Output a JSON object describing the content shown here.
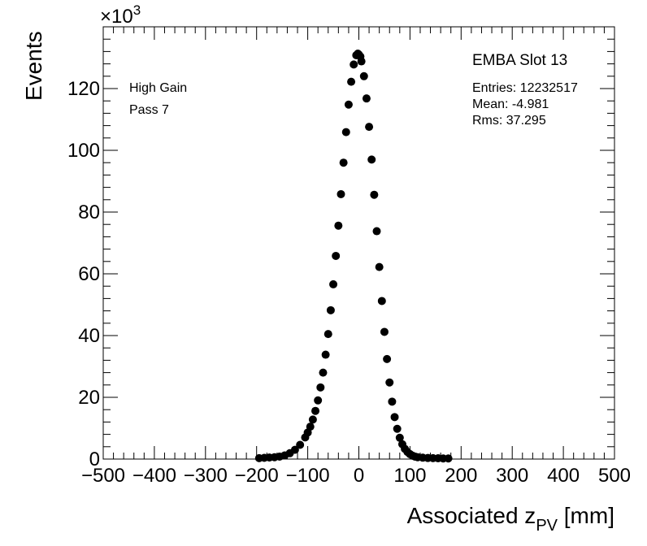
{
  "chart_data": {
    "type": "scatter",
    "xlabel": {
      "main": "Associated z",
      "sub": "PV",
      "unit": " [mm]"
    },
    "ylabel": "Events",
    "y_exponent_label": {
      "prefix": "×10",
      "exp": "3"
    },
    "xlim": [
      -500,
      500
    ],
    "ylim": [
      0,
      140
    ],
    "x_ticks": [
      -500,
      -400,
      -300,
      -200,
      -100,
      0,
      100,
      200,
      300,
      400,
      500
    ],
    "x_tick_labels": [
      "−500",
      "−400",
      "−300",
      "−200",
      "−100",
      "0",
      "100",
      "200",
      "300",
      "400",
      "500"
    ],
    "y_ticks": [
      0,
      20,
      40,
      60,
      80,
      100,
      120
    ],
    "y_tick_labels": [
      "0",
      "20",
      "40",
      "60",
      "80",
      "100",
      "120"
    ],
    "marker_color": "#000000",
    "grid": false,
    "series": [
      {
        "x": [
          -195,
          -185,
          -175,
          -165,
          -155,
          -145,
          -135,
          -125,
          -115,
          -105,
          -100,
          -95,
          -90,
          -85,
          -80,
          -75,
          -70,
          -65,
          -60,
          -55,
          -50,
          -45,
          -40,
          -35,
          -30,
          -25,
          -20,
          -15,
          -10,
          -5,
          -2,
          0,
          3,
          5,
          10,
          15,
          20,
          25,
          30,
          35,
          40,
          45,
          50,
          55,
          60,
          65,
          70,
          75,
          80,
          85,
          90,
          95,
          100,
          105,
          110,
          115,
          125,
          135,
          145,
          155,
          165,
          175
        ],
        "y": [
          0.3,
          0.4,
          0.5,
          0.6,
          0.8,
          1.2,
          1.9,
          3.0,
          4.6,
          7.0,
          8.6,
          10.5,
          12.8,
          15.6,
          19.0,
          23.2,
          28.0,
          33.8,
          40.5,
          48.2,
          56.6,
          65.8,
          75.6,
          85.8,
          96.0,
          105.9,
          114.8,
          122.2,
          127.8,
          130.8,
          131.3,
          131.0,
          130.4,
          128.8,
          124.0,
          116.8,
          107.6,
          97.0,
          85.6,
          73.8,
          62.2,
          51.2,
          41.2,
          32.4,
          24.8,
          18.6,
          13.6,
          9.8,
          6.9,
          4.8,
          3.3,
          2.3,
          1.6,
          1.1,
          0.8,
          0.6,
          0.45,
          0.35,
          0.3,
          0.25,
          0.2,
          0.2
        ]
      }
    ]
  },
  "labels": {
    "gain": "High Gain",
    "pass": "Pass 7",
    "module": "EMBA Slot 13",
    "entries": "Entries: 12232517",
    "mean": "Mean: -4.981",
    "rms": "Rms: 37.295"
  }
}
